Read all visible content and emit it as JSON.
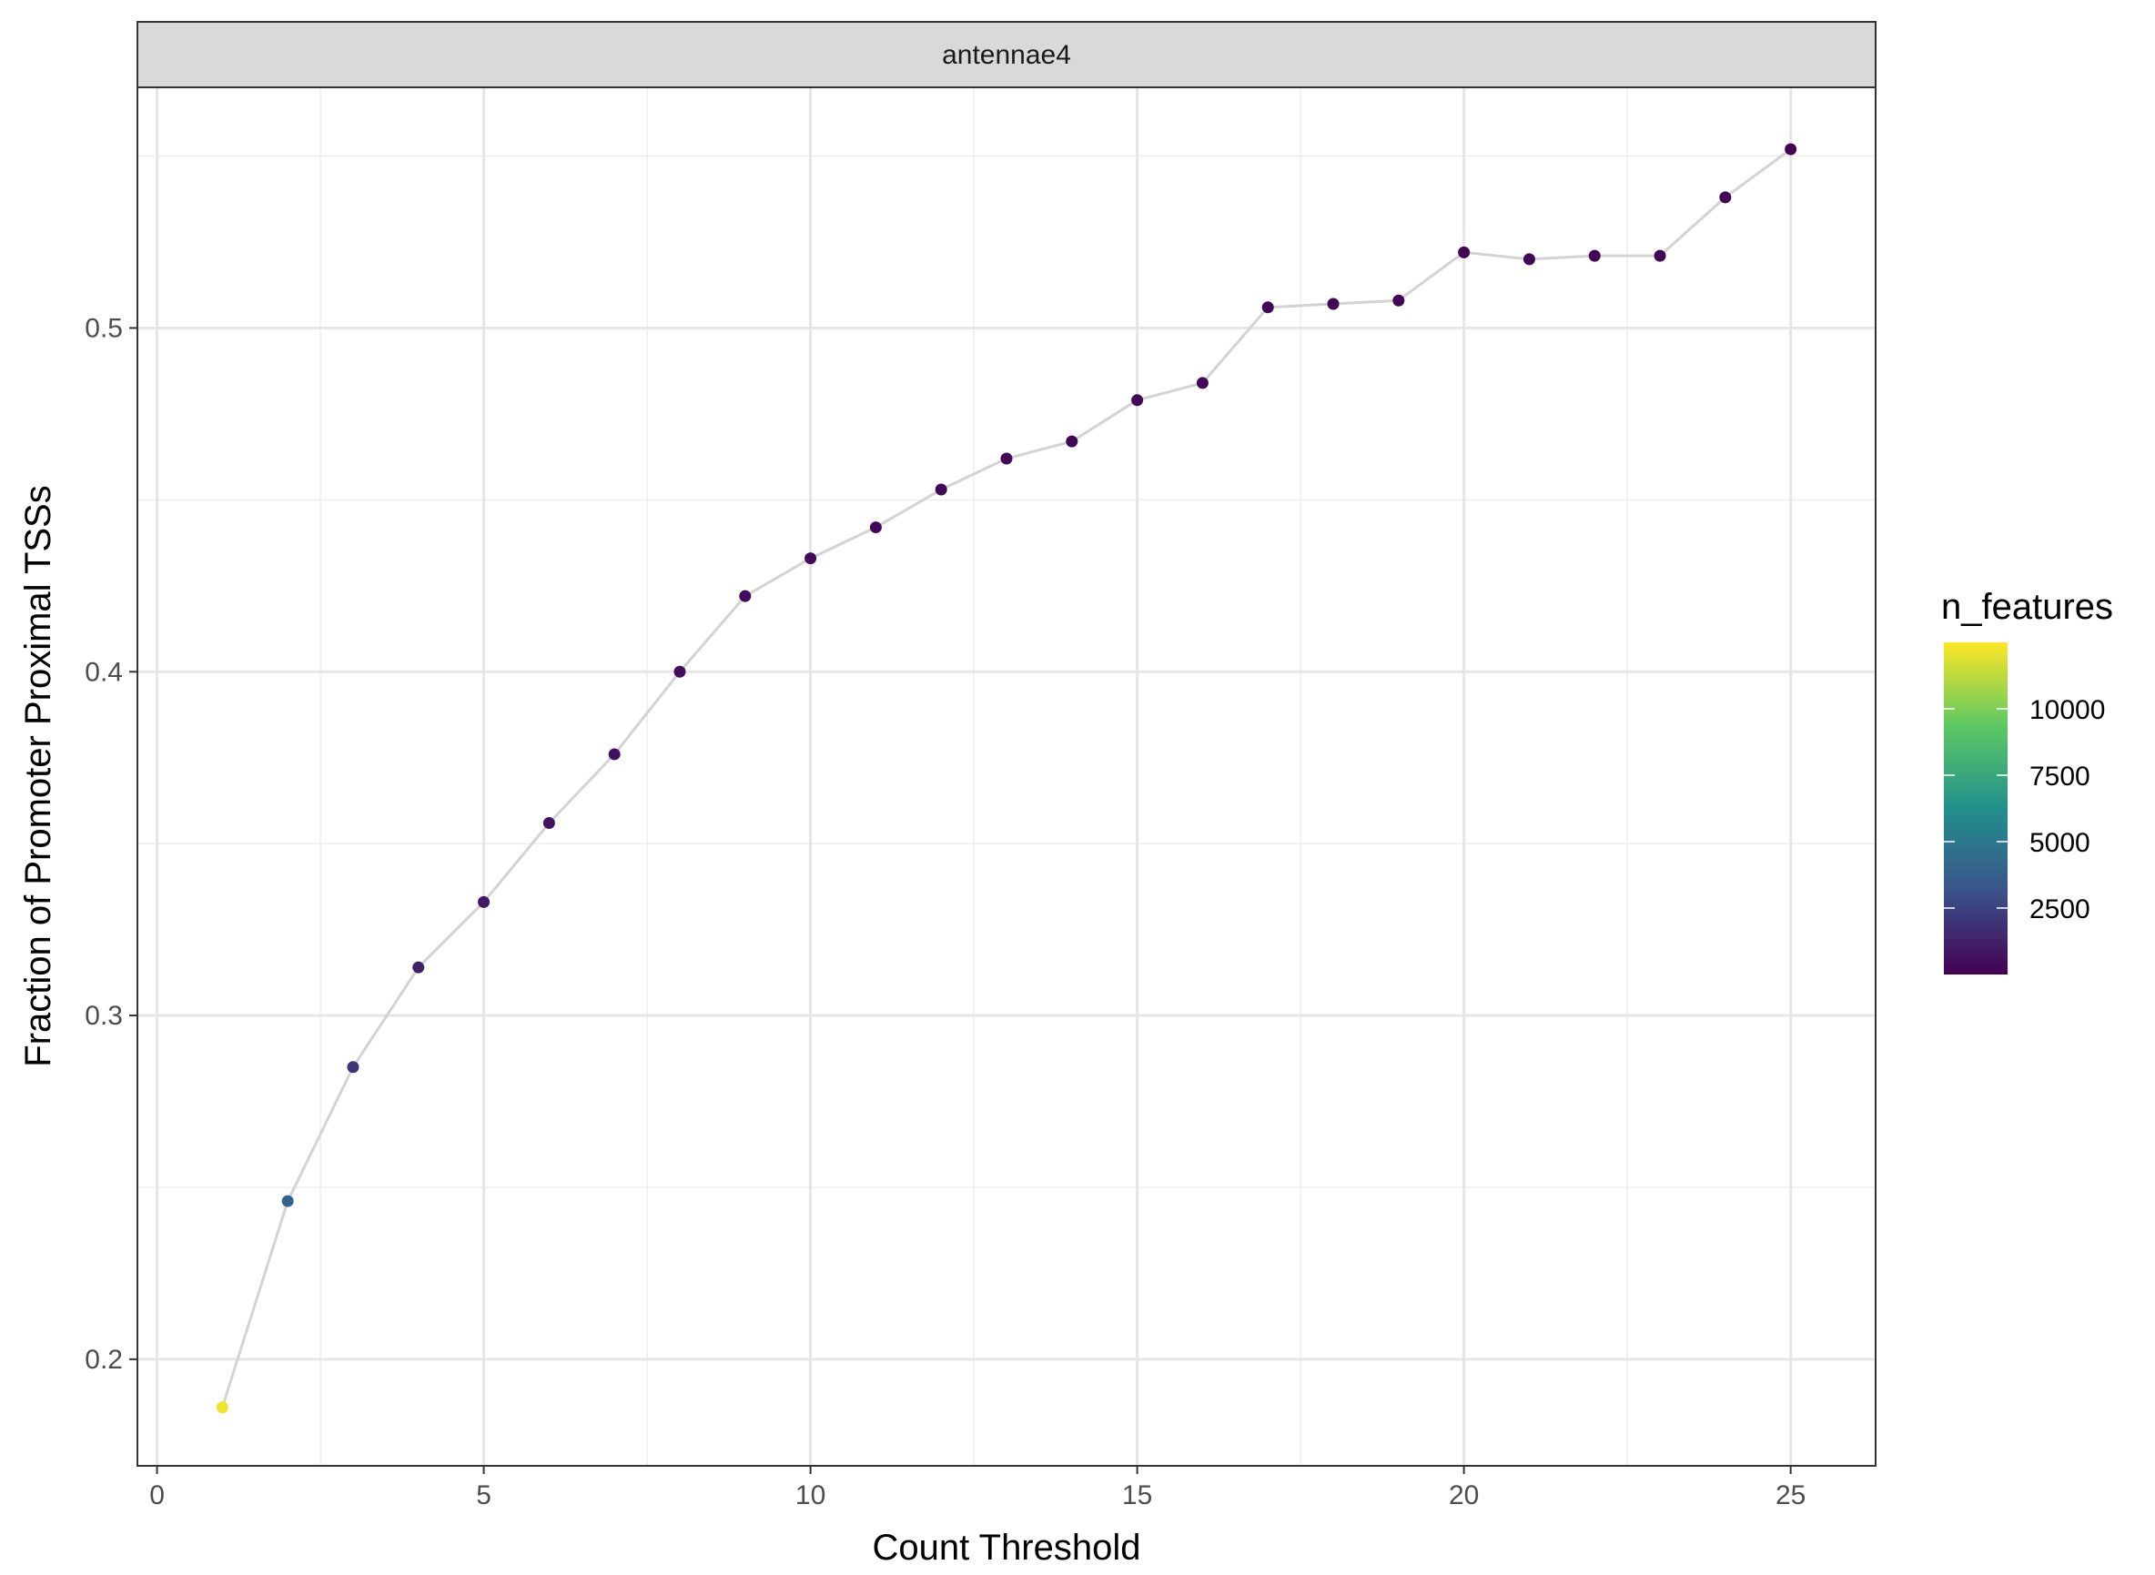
{
  "chart_data": {
    "type": "line",
    "panel_label": "antennae4",
    "xlabel": "Count Threshold",
    "ylabel": "Fraction of Promoter Proximal TSSs",
    "xlim": [
      -0.3,
      26.3
    ],
    "ylim": [
      0.169,
      0.57
    ],
    "x_ticks": [
      0,
      5,
      10,
      15,
      20,
      25
    ],
    "y_ticks": [
      0.2,
      0.3,
      0.4,
      0.5
    ],
    "x_tick_labels": [
      "0",
      "5",
      "10",
      "15",
      "20",
      "25"
    ],
    "y_tick_labels": [
      "0.2",
      "0.3",
      "0.4",
      "0.5"
    ],
    "grid": true,
    "line_color": "#d3d3d3",
    "color_legend": {
      "title": "n_features",
      "position": "right",
      "min": 0,
      "max": 12500,
      "ticks": [
        2500,
        5000,
        7500,
        10000
      ],
      "tick_labels": [
        "2500",
        "5000",
        "7500",
        "10000"
      ],
      "colors": [
        "#440154",
        "#3b528b",
        "#21908c",
        "#5dc863",
        "#fde725"
      ]
    },
    "series": [
      {
        "x": [
          1,
          2,
          3,
          4,
          5,
          6,
          7,
          8,
          9,
          10,
          11,
          12,
          13,
          14,
          15,
          16,
          17,
          18,
          19,
          20,
          21,
          22,
          23,
          24,
          25
        ],
        "y": [
          0.186,
          0.246,
          0.285,
          0.314,
          0.333,
          0.356,
          0.376,
          0.4,
          0.422,
          0.433,
          0.442,
          0.453,
          0.462,
          0.467,
          0.479,
          0.484,
          0.506,
          0.507,
          0.508,
          0.522,
          0.52,
          0.521,
          0.521,
          0.538,
          0.552
        ],
        "n_features": [
          12200,
          3900,
          1900,
          1250,
          900,
          700,
          560,
          470,
          400,
          350,
          310,
          280,
          255,
          235,
          215,
          200,
          185,
          175,
          165,
          155,
          148,
          140,
          134,
          128,
          122
        ]
      }
    ]
  }
}
